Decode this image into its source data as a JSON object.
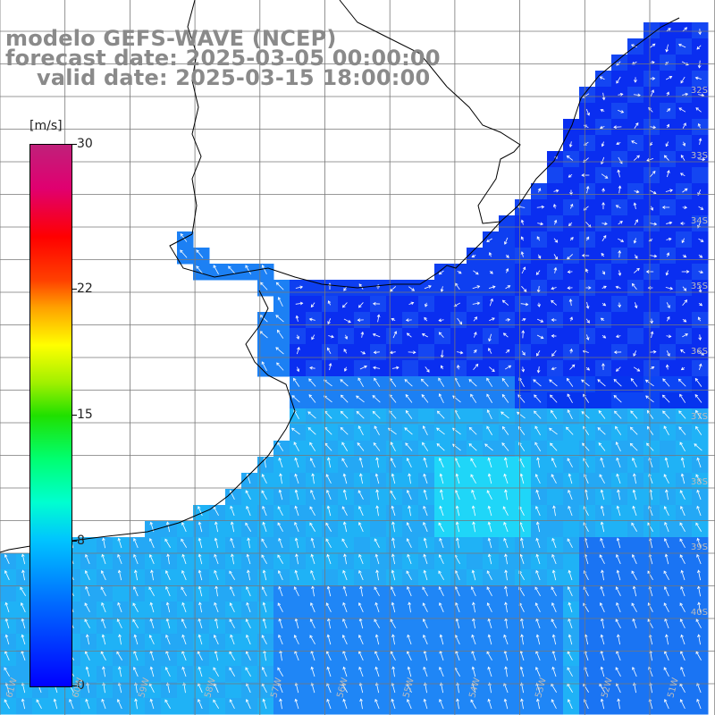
{
  "title": {
    "line1": "modelo GEFS-WAVE (NCEP)",
    "line2": "forecast date: 2025-03-05 00:00:00",
    "line3": "valid date: 2025-03-15 18:00:00"
  },
  "colorbar": {
    "unit": "[m/s]",
    "ticks": [
      "30",
      "22",
      "15",
      "8",
      "0"
    ],
    "tick_values": [
      30,
      22,
      15,
      8,
      0
    ],
    "min": 0,
    "max": 30
  },
  "lat_labels": [
    "32S",
    "33S",
    "34S",
    "35S",
    "36S",
    "37S",
    "38S",
    "39S",
    "40S"
  ],
  "lon_labels": [
    "61W",
    "60W",
    "59W",
    "58W",
    "57W",
    "56W",
    "55W",
    "54W",
    "53W",
    "52W",
    "51W"
  ],
  "colors": {
    "land": "#ffffff",
    "grid": "#888888",
    "coast": "#000000",
    "arrow": "#ffffff",
    "title": "#8a8a8a"
  }
}
